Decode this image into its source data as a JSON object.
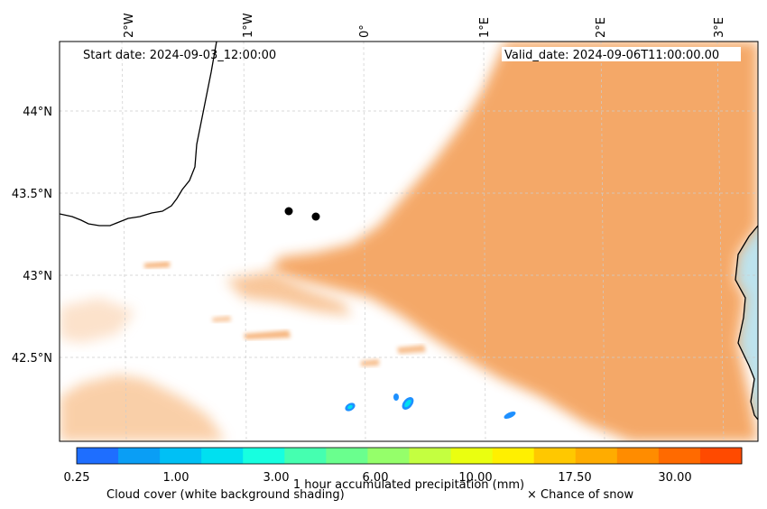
{
  "header": {
    "start_date": "Start date: 2024-09-03_12:00:00",
    "valid_date": "Valid_date: 2024-09-06T11:00:00.00"
  },
  "map": {
    "lon_ticks": [
      "2°W",
      "1°W",
      "0°",
      "1°E",
      "2°E",
      "3°E"
    ],
    "lat_ticks": [
      "44°N",
      "43.5°N",
      "43°N",
      "42.5°N"
    ],
    "locations": 2
  },
  "colorbar": {
    "tick_labels": [
      "0.25",
      "1.00",
      "3.00",
      "6.00",
      "10.00",
      "17.50",
      "30.00"
    ],
    "colors": [
      "#1e6eff",
      "#0a9ef5",
      "#00c0f5",
      "#00e0f0",
      "#17ffe0",
      "#45ffb0",
      "#6aff8e",
      "#95ff6a",
      "#c4ff40",
      "#eaff10",
      "#fff000",
      "#ffc800",
      "#ffac00",
      "#ff8c00",
      "#ff6a00",
      "#ff4a00"
    ],
    "label": "1 hour accumulated precipitation (mm)",
    "cloud_note": "Cloud cover (white background shading)",
    "snow_note": "× Chance of snow"
  },
  "colors": {
    "cloud": "#f4a460",
    "sea": "#bde3ee",
    "precip": "#1e90ff"
  }
}
